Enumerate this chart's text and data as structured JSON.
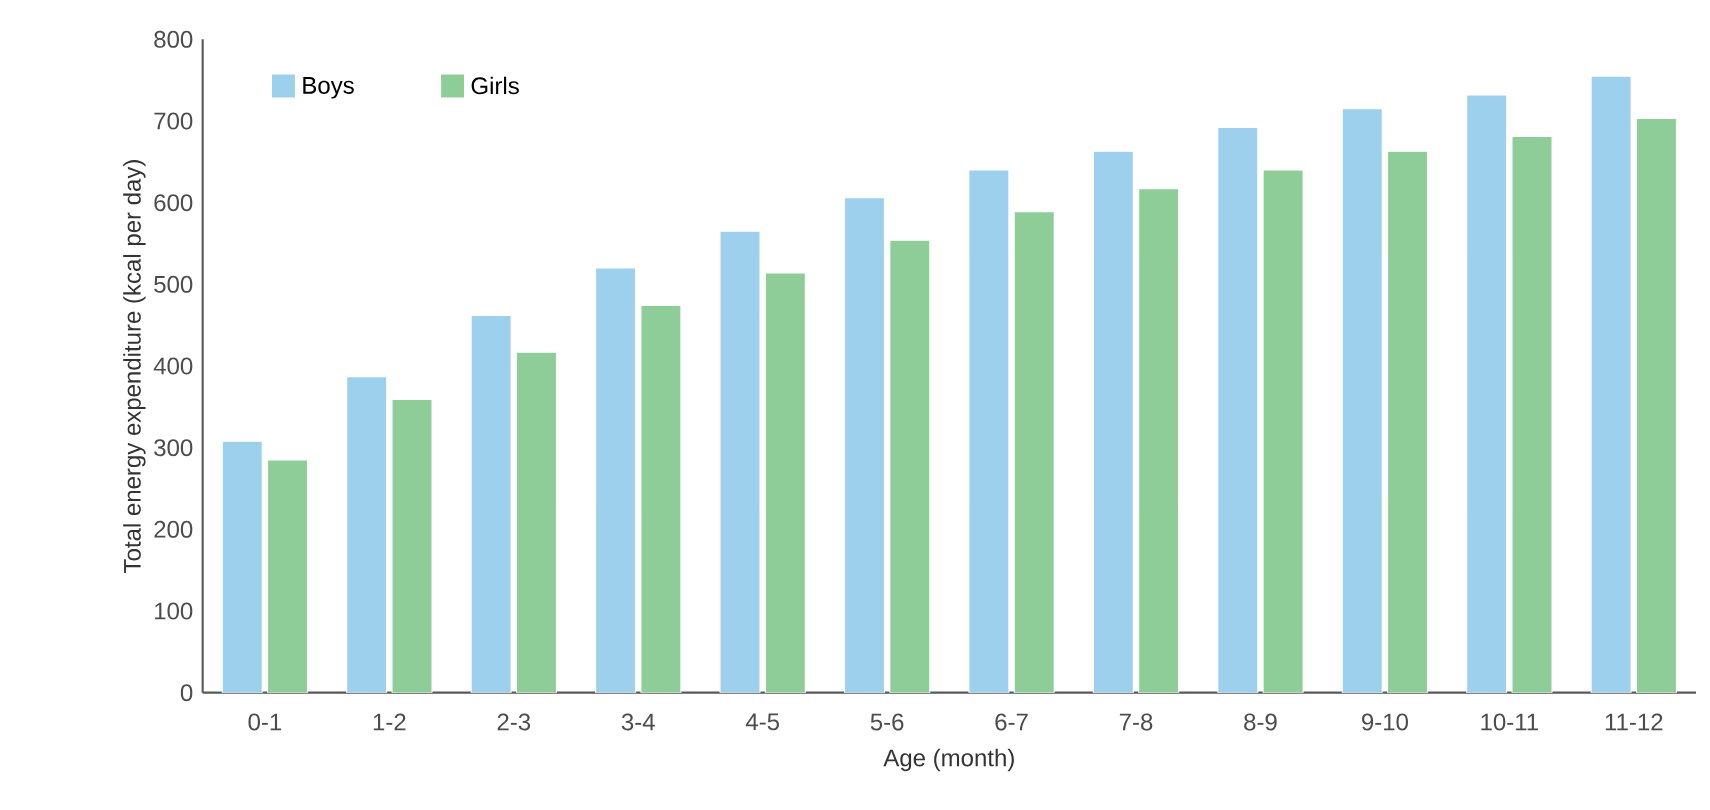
{
  "chart_data": {
    "type": "bar",
    "xlabel": "Age (month)",
    "ylabel": "Total energy expenditure (kcal per day)",
    "categories": [
      "0-1",
      "1-2",
      "2-3",
      "3-4",
      "4-5",
      "5-6",
      "6-7",
      "7-8",
      "8-9",
      "9-10",
      "10-11",
      "11-12"
    ],
    "series": [
      {
        "name": "Boys",
        "color": "#9dd0ec",
        "values": [
          308,
          387,
          462,
          520,
          565,
          606,
          640,
          663,
          692,
          715,
          732,
          755
        ]
      },
      {
        "name": "Girls",
        "color": "#8fcd98",
        "values": [
          285,
          359,
          417,
          474,
          514,
          554,
          589,
          617,
          640,
          663,
          681,
          703
        ]
      }
    ],
    "ylim": [
      0,
      800
    ],
    "yticks": [
      0,
      100,
      200,
      300,
      400,
      500,
      600,
      700,
      800
    ],
    "grid": false,
    "legend": "top left"
  }
}
